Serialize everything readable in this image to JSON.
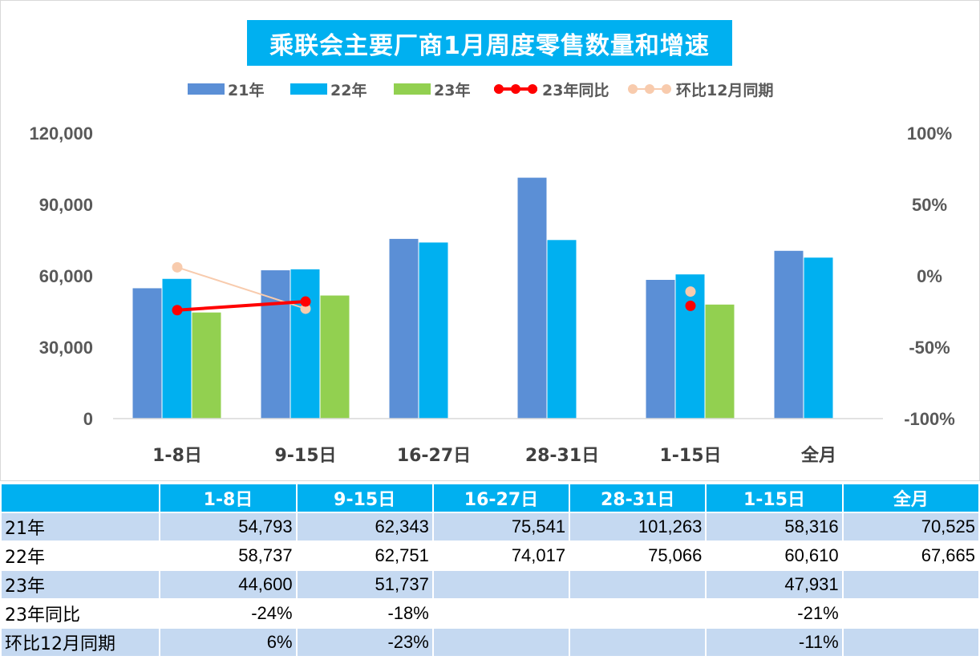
{
  "title": "乘联会主要厂商1月周度零售数量和增速",
  "legend": [
    {
      "name": "21年",
      "color": "#5b8fd6",
      "kind": "bar"
    },
    {
      "name": "22年",
      "color": "#00b0f0",
      "kind": "bar"
    },
    {
      "name": "23年",
      "color": "#92d050",
      "kind": "bar"
    },
    {
      "name": "23年同比",
      "color": "#ff0000",
      "kind": "line"
    },
    {
      "name": "环比12月同期",
      "color": "#f8cbad",
      "kind": "line"
    }
  ],
  "chart_data": {
    "type": "bar",
    "categories": [
      "1-8日",
      "9-15日",
      "16-27日",
      "28-31日",
      "1-15日",
      "全月"
    ],
    "series": [
      {
        "name": "21年",
        "values": [
          54793,
          62343,
          75541,
          101263,
          58316,
          70525
        ]
      },
      {
        "name": "22年",
        "values": [
          58737,
          62751,
          74017,
          75066,
          60610,
          67665
        ]
      },
      {
        "name": "23年",
        "values": [
          44600,
          51737,
          null,
          null,
          47931,
          null
        ]
      }
    ],
    "line_series": [
      {
        "name": "23年同比",
        "values": [
          -0.24,
          -0.18,
          null,
          null,
          -0.21,
          null
        ]
      },
      {
        "name": "环比12月同期",
        "values": [
          0.06,
          -0.23,
          null,
          null,
          -0.11,
          null
        ]
      }
    ],
    "y_left": {
      "min": 0,
      "max": 120000,
      "ticks": [
        "0",
        "30,000",
        "60,000",
        "90,000",
        "120,000"
      ]
    },
    "y_right": {
      "min": -1,
      "max": 1,
      "ticks": [
        "-100%",
        "-50%",
        "0%",
        "50%",
        "100%"
      ]
    },
    "grid": false,
    "legend_position": "top"
  },
  "table": {
    "headers": [
      "1-8日",
      "9-15日",
      "16-27日",
      "28-31日",
      "1-15日",
      "全月"
    ],
    "rows": [
      {
        "label": "21年",
        "cells": [
          "54,793",
          "62,343",
          "75,541",
          "101,263",
          "58,316",
          "70,525"
        ]
      },
      {
        "label": "22年",
        "cells": [
          "58,737",
          "62,751",
          "74,017",
          "75,066",
          "60,610",
          "67,665"
        ]
      },
      {
        "label": "23年",
        "cells": [
          "44,600",
          "51,737",
          "",
          "",
          "47,931",
          ""
        ]
      },
      {
        "label": "23年同比",
        "cells": [
          "-24%",
          "-18%",
          "",
          "",
          "-21%",
          ""
        ]
      },
      {
        "label": "环比12月同期",
        "cells": [
          "6%",
          "-23%",
          "",
          "",
          "-11%",
          ""
        ]
      }
    ]
  }
}
